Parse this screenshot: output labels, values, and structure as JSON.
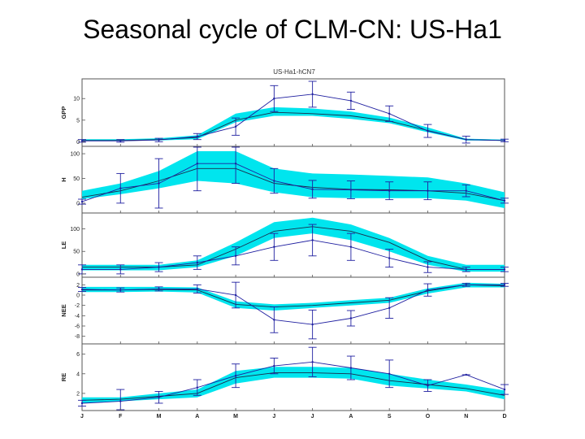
{
  "slide_title": "Seasonal cycle of CLM-CN: US-Ha1",
  "figure_title": "US-Ha1-hCN7",
  "colors": {
    "band": "#00e5ee",
    "model_line": "#1a2a4a",
    "obs_line": "#1f1fa0",
    "frame": "#555555"
  },
  "chart_data": [
    {
      "type": "line",
      "ylabel": "GPP",
      "ylim": [
        -0.5,
        14
      ],
      "yticks": [
        0,
        5,
        10
      ],
      "x": [
        "J",
        "F",
        "M",
        "A",
        "M",
        "J",
        "J",
        "A",
        "S",
        "O",
        "N",
        "D"
      ],
      "band": {
        "lower": [
          0.2,
          0.2,
          0.3,
          0.6,
          4.5,
          6.0,
          6.0,
          5.3,
          4.3,
          2.2,
          0.3,
          0.2
        ],
        "upper": [
          0.6,
          0.6,
          0.8,
          1.5,
          6.5,
          8.0,
          7.7,
          7.0,
          5.6,
          3.3,
          0.7,
          0.5
        ]
      },
      "model": [
        0.3,
        0.3,
        0.5,
        1.0,
        5.0,
        6.8,
        6.5,
        6.0,
        4.8,
        2.6,
        0.5,
        0.3
      ],
      "obs": {
        "values": [
          0.2,
          0.2,
          0.4,
          1.2,
          3.5,
          10.0,
          11.0,
          9.5,
          6.5,
          2.5,
          0.5,
          0.3
        ],
        "err": [
          0.3,
          0.3,
          0.4,
          0.7,
          2.0,
          3.0,
          3.0,
          2.0,
          1.8,
          1.5,
          0.8,
          0.3
        ]
      }
    },
    {
      "type": "line",
      "ylabel": "H",
      "ylim": [
        -15,
        110
      ],
      "yticks": [
        0,
        50,
        100
      ],
      "x": [
        "J",
        "F",
        "M",
        "A",
        "M",
        "J",
        "J",
        "A",
        "S",
        "O",
        "N",
        "D"
      ],
      "band": {
        "lower": [
          8,
          18,
          30,
          45,
          40,
          22,
          12,
          10,
          10,
          10,
          5,
          -10
        ],
        "upper": [
          25,
          40,
          65,
          105,
          105,
          70,
          60,
          58,
          55,
          52,
          40,
          22
        ]
      },
      "model": [
        12,
        25,
        45,
        70,
        70,
        40,
        32,
        28,
        27,
        25,
        20,
        5
      ],
      "obs": {
        "values": [
          3,
          30,
          40,
          80,
          80,
          45,
          28,
          27,
          25,
          25,
          25,
          5
        ],
        "err": [
          5,
          30,
          50,
          55,
          40,
          25,
          18,
          18,
          18,
          18,
          12,
          5
        ]
      }
    },
    {
      "type": "line",
      "ylabel": "LE",
      "ylim": [
        -2,
        130
      ],
      "yticks": [
        0,
        50,
        100
      ],
      "x": [
        "J",
        "F",
        "M",
        "A",
        "M",
        "J",
        "J",
        "A",
        "S",
        "O",
        "N",
        "D"
      ],
      "band": {
        "lower": [
          8,
          8,
          8,
          15,
          40,
          80,
          90,
          75,
          50,
          20,
          5,
          5
        ],
        "upper": [
          20,
          20,
          20,
          30,
          70,
          115,
          125,
          110,
          80,
          40,
          20,
          20
        ]
      },
      "model": [
        15,
        15,
        15,
        20,
        55,
        95,
        105,
        95,
        70,
        30,
        10,
        10
      ],
      "obs": {
        "values": [
          10,
          10,
          15,
          25,
          40,
          60,
          75,
          60,
          35,
          15,
          10,
          10
        ],
        "err": [
          10,
          10,
          10,
          15,
          20,
          30,
          35,
          30,
          20,
          12,
          5,
          5
        ]
      }
    },
    {
      "type": "line",
      "ylabel": "NEE",
      "ylim": [
        -9,
        3
      ],
      "yticks": [
        2,
        0,
        -2,
        -4,
        -6,
        -8
      ],
      "x": [
        "J",
        "F",
        "M",
        "A",
        "M",
        "J",
        "J",
        "A",
        "S",
        "O",
        "N",
        "D"
      ],
      "band": {
        "lower": [
          0.6,
          0.6,
          0.7,
          0.5,
          -2.5,
          -3.0,
          -2.5,
          -2.0,
          -1.5,
          0.3,
          1.5,
          1.5
        ],
        "upper": [
          1.6,
          1.6,
          1.6,
          1.5,
          -1.2,
          -1.8,
          -1.5,
          -1.0,
          -0.5,
          1.3,
          2.4,
          2.2
        ]
      },
      "model": [
        1.0,
        1.0,
        1.1,
        1.0,
        -1.8,
        -2.3,
        -2.0,
        -1.5,
        -1.0,
        0.8,
        2.0,
        1.8
      ],
      "obs": {
        "values": [
          1.1,
          1.0,
          1.2,
          1.2,
          0.0,
          -4.8,
          -5.7,
          -4.5,
          -2.5,
          1.0,
          2.0,
          2.0
        ],
        "err": [
          0.4,
          0.4,
          0.4,
          0.8,
          2.5,
          2.5,
          2.8,
          1.5,
          2.0,
          1.2,
          0.3,
          0.3
        ]
      }
    },
    {
      "type": "line",
      "ylabel": "RE",
      "ylim": [
        0.5,
        6.8
      ],
      "yticks": [
        2,
        4,
        6
      ],
      "x": [
        "J",
        "F",
        "M",
        "A",
        "M",
        "J",
        "J",
        "A",
        "S",
        "O",
        "N",
        "D"
      ],
      "band": {
        "lower": [
          1.0,
          1.2,
          1.4,
          1.6,
          3.0,
          3.6,
          3.6,
          3.5,
          2.8,
          2.5,
          2.2,
          1.4
        ],
        "upper": [
          1.6,
          1.6,
          2.0,
          2.4,
          4.3,
          4.7,
          4.7,
          4.6,
          4.0,
          3.4,
          2.9,
          2.3
        ]
      },
      "model": [
        1.3,
        1.4,
        1.7,
        2.0,
        3.6,
        4.1,
        4.1,
        4.0,
        3.3,
        2.9,
        2.5,
        1.8
      ],
      "obs": {
        "values": [
          1.0,
          1.2,
          1.6,
          2.6,
          3.8,
          4.8,
          5.2,
          4.6,
          4.0,
          2.8,
          3.9,
          2.4
        ],
        "err": [
          0.3,
          1.2,
          0.6,
          0.8,
          1.2,
          0.8,
          1.5,
          1.2,
          1.4,
          0.6,
          0.0,
          0.5
        ]
      }
    }
  ]
}
